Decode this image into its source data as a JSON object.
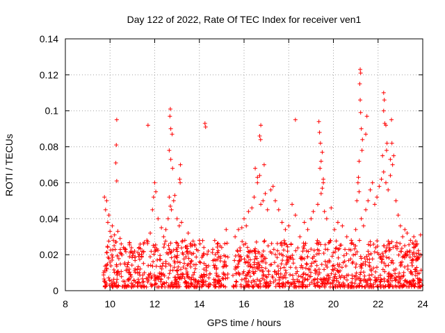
{
  "chart_data": {
    "type": "scatter",
    "title": "Day 122 of 2022, Rate Of TEC Index for receiver ven1",
    "xlabel": "GPS time / hours",
    "ylabel": "ROTI / TECUs",
    "xlim": [
      8,
      24
    ],
    "ylim": [
      0,
      0.14
    ],
    "x_ticks": [
      "8",
      "10",
      "12",
      "14",
      "16",
      "18",
      "20",
      "22",
      "24"
    ],
    "y_ticks": [
      "0",
      "0.02",
      "0.04",
      "0.06",
      "0.08",
      "0.1",
      "0.12",
      "0.14"
    ],
    "grid": true,
    "legend": "none",
    "marker": "plus",
    "color": "#ff0000",
    "series": [
      {
        "values": [
          [
            9.75,
            0.052
          ],
          [
            9.8,
            0.045
          ],
          [
            9.85,
            0.05
          ],
          [
            9.9,
            0.038
          ],
          [
            9.95,
            0.042
          ],
          [
            10.0,
            0.033
          ],
          [
            10.05,
            0.03
          ],
          [
            10.1,
            0.036
          ],
          [
            10.15,
            0.028
          ],
          [
            10.2,
            0.031
          ],
          [
            10.25,
            0.027
          ],
          [
            10.35,
            0.033
          ],
          [
            10.45,
            0.029
          ],
          [
            10.5,
            0.026
          ],
          [
            10.6,
            0.024
          ],
          [
            10.7,
            0.023
          ],
          [
            10.9,
            0.021
          ],
          [
            11.1,
            0.022
          ],
          [
            11.3,
            0.024
          ],
          [
            11.5,
            0.026
          ],
          [
            11.65,
            0.028
          ],
          [
            11.8,
            0.032
          ],
          [
            11.9,
            0.045
          ],
          [
            11.95,
            0.052
          ],
          [
            12.0,
            0.06
          ],
          [
            12.05,
            0.055
          ],
          [
            12.15,
            0.04
          ],
          [
            12.3,
            0.035
          ],
          [
            12.4,
            0.03
          ],
          [
            12.5,
            0.034
          ],
          [
            12.6,
            0.04
          ],
          [
            12.65,
            0.052
          ],
          [
            12.7,
            0.047
          ],
          [
            12.75,
            0.045
          ],
          [
            12.85,
            0.05
          ],
          [
            12.9,
            0.053
          ],
          [
            13.0,
            0.04
          ],
          [
            13.1,
            0.036
          ],
          [
            13.2,
            0.038
          ],
          [
            13.35,
            0.028
          ],
          [
            13.5,
            0.032
          ],
          [
            13.6,
            0.026
          ],
          [
            13.8,
            0.025
          ],
          [
            14.0,
            0.028
          ],
          [
            14.2,
            0.024
          ],
          [
            14.4,
            0.022
          ],
          [
            14.6,
            0.023
          ],
          [
            14.8,
            0.026
          ],
          [
            15.0,
            0.024
          ],
          [
            15.2,
            0.034
          ],
          [
            15.6,
            0.03
          ],
          [
            15.75,
            0.034
          ],
          [
            15.9,
            0.035
          ],
          [
            16.0,
            0.04
          ],
          [
            16.1,
            0.036
          ],
          [
            16.2,
            0.044
          ],
          [
            16.35,
            0.046
          ],
          [
            16.45,
            0.052
          ],
          [
            16.5,
            0.068
          ],
          [
            16.6,
            0.06
          ],
          [
            16.7,
            0.064
          ],
          [
            16.75,
            0.048
          ],
          [
            16.85,
            0.05
          ],
          [
            16.95,
            0.054
          ],
          [
            17.05,
            0.045
          ],
          [
            17.2,
            0.056
          ],
          [
            17.3,
            0.058
          ],
          [
            17.4,
            0.05
          ],
          [
            17.55,
            0.045
          ],
          [
            17.7,
            0.038
          ],
          [
            17.85,
            0.034
          ],
          [
            18.0,
            0.036
          ],
          [
            18.15,
            0.048
          ],
          [
            18.3,
            0.042
          ],
          [
            18.5,
            0.03
          ],
          [
            18.7,
            0.038
          ],
          [
            18.85,
            0.034
          ],
          [
            19.0,
            0.04
          ],
          [
            19.1,
            0.044
          ],
          [
            19.3,
            0.048
          ],
          [
            19.45,
            0.054
          ],
          [
            19.55,
            0.06
          ],
          [
            19.6,
            0.044
          ],
          [
            19.7,
            0.04
          ],
          [
            19.9,
            0.046
          ],
          [
            20.05,
            0.034
          ],
          [
            20.2,
            0.038
          ],
          [
            20.4,
            0.036
          ],
          [
            20.6,
            0.03
          ],
          [
            20.8,
            0.028
          ],
          [
            21.0,
            0.034
          ],
          [
            21.05,
            0.05
          ],
          [
            21.15,
            0.055
          ],
          [
            21.25,
            0.04
          ],
          [
            21.35,
            0.036
          ],
          [
            21.45,
            0.045
          ],
          [
            21.55,
            0.05
          ],
          [
            21.65,
            0.056
          ],
          [
            21.75,
            0.06
          ],
          [
            21.85,
            0.048
          ],
          [
            21.95,
            0.052
          ],
          [
            22.05,
            0.058
          ],
          [
            22.15,
            0.062
          ],
          [
            22.25,
            0.066
          ],
          [
            22.35,
            0.06
          ],
          [
            22.45,
            0.056
          ],
          [
            22.55,
            0.064
          ],
          [
            22.65,
            0.07
          ],
          [
            22.7,
            0.075
          ],
          [
            22.8,
            0.05
          ],
          [
            22.9,
            0.042
          ],
          [
            23.0,
            0.036
          ],
          [
            23.1,
            0.03
          ],
          [
            23.2,
            0.034
          ],
          [
            23.3,
            0.032
          ],
          [
            23.45,
            0.028
          ],
          [
            23.6,
            0.03
          ],
          [
            23.75,
            0.026
          ],
          [
            23.9,
            0.031
          ],
          [
            10.3,
            0.095
          ],
          [
            10.28,
            0.081
          ],
          [
            10.26,
            0.071
          ],
          [
            10.3,
            0.061
          ],
          [
            11.7,
            0.092
          ],
          [
            12.7,
            0.101
          ],
          [
            12.68,
            0.097
          ],
          [
            12.72,
            0.09
          ],
          [
            12.78,
            0.087
          ],
          [
            12.65,
            0.078
          ],
          [
            12.72,
            0.073
          ],
          [
            12.8,
            0.068
          ],
          [
            13.15,
            0.07
          ],
          [
            13.12,
            0.062
          ],
          [
            13.14,
            0.06
          ],
          [
            14.25,
            0.093
          ],
          [
            14.28,
            0.091
          ],
          [
            16.75,
            0.092
          ],
          [
            16.7,
            0.086
          ],
          [
            16.74,
            0.084
          ],
          [
            16.9,
            0.07
          ],
          [
            16.6,
            0.063
          ],
          [
            18.3,
            0.095
          ],
          [
            19.35,
            0.094
          ],
          [
            19.38,
            0.088
          ],
          [
            19.42,
            0.082
          ],
          [
            19.5,
            0.077
          ],
          [
            19.45,
            0.072
          ],
          [
            19.4,
            0.068
          ],
          [
            19.55,
            0.062
          ],
          [
            19.5,
            0.057
          ],
          [
            21.2,
            0.123
          ],
          [
            21.22,
            0.121
          ],
          [
            21.18,
            0.115
          ],
          [
            21.2,
            0.106
          ],
          [
            21.22,
            0.099
          ],
          [
            21.25,
            0.09
          ],
          [
            21.3,
            0.084
          ],
          [
            21.28,
            0.078
          ],
          [
            21.15,
            0.072
          ],
          [
            21.12,
            0.063
          ],
          [
            21.1,
            0.06
          ],
          [
            21.5,
            0.097
          ],
          [
            21.45,
            0.087
          ],
          [
            22.25,
            0.11
          ],
          [
            22.28,
            0.106
          ],
          [
            22.25,
            0.1
          ],
          [
            22.3,
            0.093
          ],
          [
            22.35,
            0.092
          ],
          [
            22.4,
            0.082
          ],
          [
            22.38,
            0.078
          ],
          [
            22.2,
            0.075
          ],
          [
            22.6,
            0.095
          ],
          [
            22.62,
            0.082
          ],
          [
            22.55,
            0.073
          ]
        ]
      }
    ]
  }
}
